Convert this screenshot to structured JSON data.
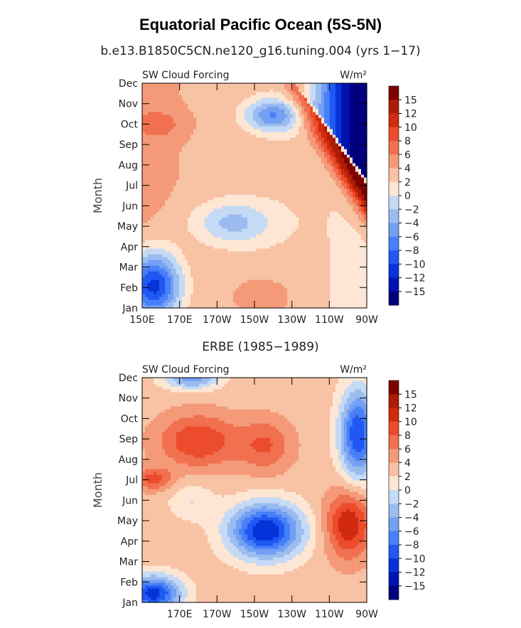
{
  "title": "Equatorial Pacific Ocean (5S-5N)",
  "colors": {
    "levels": [
      "#00007f",
      "#0013b0",
      "#0633d9",
      "#2058f3",
      "#4780f7",
      "#739ff4",
      "#9cbcef",
      "#c4daf5",
      "#fde6d4",
      "#f8c2a4",
      "#f49a79",
      "#f07050",
      "#ec4b2c",
      "#d12a0e",
      "#ad1c04",
      "#7e0000"
    ]
  },
  "chart_data": [
    {
      "type": "contour",
      "subtitle": "b.e13.B1850C5CN.ne120_g16.tuning.004 (yrs 1−17)",
      "left_label": "SW Cloud Forcing",
      "right_label": "W/m²",
      "ylabel": "Month",
      "yticks": [
        "Jan",
        "Feb",
        "Mar",
        "Apr",
        "May",
        "Jun",
        "Jul",
        "Aug",
        "Sep",
        "Oct",
        "Nov",
        "Dec"
      ],
      "xticks": [
        "150E",
        "170E",
        "170W",
        "150W",
        "130W",
        "110W",
        "90W"
      ],
      "xlim": [
        150,
        270
      ],
      "colorbar_labels": [
        "15",
        "12",
        "10",
        "8",
        "6",
        "4",
        "2",
        "0",
        "−2",
        "−4",
        "−6",
        "−8",
        "−10",
        "−12",
        "−15"
      ],
      "colorbar_levels": [
        -15,
        -12,
        -10,
        -8,
        -6,
        -4,
        -2,
        0,
        2,
        4,
        6,
        8,
        10,
        12,
        15
      ]
    },
    {
      "type": "contour",
      "subtitle": "ERBE (1985−1989)",
      "left_label": "SW Cloud Forcing",
      "right_label": "W/m²",
      "ylabel": "Month",
      "yticks": [
        "Jan",
        "Feb",
        "Mar",
        "Apr",
        "May",
        "Jun",
        "Jul",
        "Aug",
        "Sep",
        "Oct",
        "Nov",
        "Dec"
      ],
      "xticks": [
        "",
        "170E",
        "170W",
        "150W",
        "130W",
        "110W",
        "90W"
      ],
      "xlim": [
        150,
        270
      ],
      "colorbar_labels": [
        "15",
        "12",
        "10",
        "8",
        "6",
        "4",
        "2",
        "0",
        "−2",
        "−4",
        "−6",
        "−8",
        "−10",
        "−12",
        "−15"
      ],
      "colorbar_levels": [
        -15,
        -12,
        -10,
        -8,
        -6,
        -4,
        -2,
        0,
        2,
        4,
        6,
        8,
        10,
        12,
        15
      ]
    }
  ]
}
